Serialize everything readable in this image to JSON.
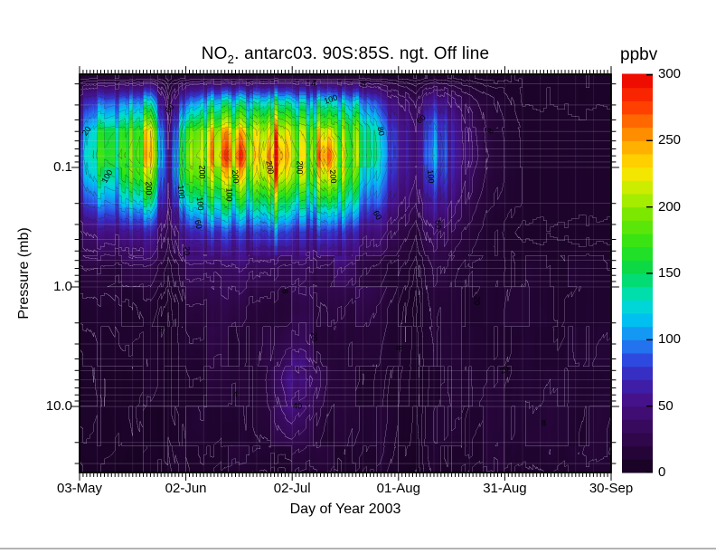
{
  "figure": {
    "title_pre": "NO",
    "title_sub": "2",
    "title_post": ". antarc03. 90S:85S. ngt. Off line",
    "colorbar_label": "ppbv"
  },
  "axes": {
    "x": {
      "label": "Day of Year 2003",
      "tick_labels": [
        "03-May",
        "02-Jun",
        "02-Jul",
        "01-Aug",
        "31-Aug",
        "30-Sep"
      ],
      "tick_days": [
        0,
        30,
        60,
        90,
        120,
        150
      ],
      "span_days": 150
    },
    "y": {
      "label": "Pressure (mb)",
      "tick_labels": [
        "0.1",
        "1.0",
        "10.0"
      ],
      "tick_values": [
        0.1,
        1,
        10
      ],
      "top_pressure": 0.0166,
      "bottom_pressure": 35.7
    }
  },
  "colorbar": {
    "min": 0,
    "max": 300,
    "tick_values": [
      0,
      50,
      100,
      150,
      200,
      250,
      300
    ],
    "tick_labels": [
      "0",
      "50",
      "100",
      "150",
      "200",
      "250",
      "300"
    ]
  },
  "chart_data": {
    "type": "heatmap",
    "title": "NO2. antarc03. 90S:85S. ngt. Off line",
    "xlabel": "Day of Year 2003",
    "ylabel": "Pressure (mb)",
    "units": "ppbv",
    "value_range": [
      0,
      300
    ],
    "x_days_since_may03": [
      0,
      5,
      10,
      15,
      20,
      25,
      30,
      35,
      40,
      45,
      50,
      55,
      60,
      65,
      70,
      75,
      80,
      85,
      90,
      95,
      100,
      105,
      110,
      115,
      120,
      125,
      130,
      135,
      140,
      145,
      150
    ],
    "pressures_mb": [
      0.018,
      0.028,
      0.05,
      0.08,
      0.12,
      0.2,
      0.35,
      0.7,
      1.5,
      3,
      6,
      12,
      25,
      40
    ],
    "values_ppbv": [
      [
        12,
        14,
        14,
        15,
        16,
        8,
        14,
        16,
        16,
        17,
        15,
        18,
        16,
        15,
        16,
        15,
        13,
        11,
        9,
        7,
        11,
        9,
        8,
        7,
        7,
        7,
        7,
        7,
        7,
        7,
        7
      ],
      [
        55,
        85,
        95,
        105,
        115,
        22,
        95,
        115,
        125,
        135,
        110,
        145,
        125,
        115,
        135,
        120,
        100,
        70,
        45,
        25,
        65,
        40,
        24,
        15,
        11,
        7,
        7,
        7,
        7,
        7,
        7
      ],
      [
        85,
        145,
        155,
        175,
        205,
        38,
        175,
        195,
        215,
        225,
        185,
        245,
        205,
        185,
        215,
        195,
        155,
        112,
        70,
        38,
        105,
        62,
        34,
        18,
        13,
        9,
        9,
        9,
        9,
        9,
        9
      ],
      [
        95,
        155,
        165,
        185,
        215,
        48,
        195,
        205,
        235,
        262,
        195,
        295,
        215,
        195,
        258,
        205,
        162,
        120,
        72,
        40,
        118,
        66,
        36,
        20,
        14,
        9,
        9,
        9,
        9,
        9,
        9
      ],
      [
        85,
        135,
        145,
        165,
        192,
        44,
        175,
        185,
        205,
        225,
        175,
        255,
        195,
        175,
        225,
        185,
        145,
        102,
        62,
        36,
        98,
        56,
        31,
        18,
        13,
        9,
        9,
        9,
        9,
        9,
        9
      ],
      [
        62,
        95,
        105,
        115,
        132,
        36,
        125,
        135,
        145,
        155,
        125,
        175,
        135,
        125,
        155,
        135,
        105,
        78,
        47,
        27,
        68,
        42,
        24,
        14,
        12,
        9,
        9,
        9,
        9,
        9,
        9
      ],
      [
        32,
        48,
        52,
        57,
        62,
        22,
        65,
        70,
        75,
        80,
        65,
        90,
        70,
        65,
        80,
        70,
        54,
        43,
        27,
        14,
        38,
        25,
        16,
        11,
        9,
        7,
        7,
        7,
        7,
        7,
        7
      ],
      [
        14,
        17,
        18,
        20,
        22,
        12,
        28,
        31,
        33,
        35,
        31,
        41,
        33,
        31,
        37,
        33,
        27,
        22,
        14,
        7,
        21,
        15,
        11,
        10,
        10,
        10,
        10,
        10,
        10,
        10,
        10
      ],
      [
        9,
        10,
        11,
        11,
        12,
        8,
        17,
        19,
        20,
        21,
        19,
        24,
        21,
        20,
        22,
        20,
        17,
        15,
        10,
        5,
        15,
        12,
        11,
        10,
        10,
        11,
        11,
        11,
        11,
        11,
        11
      ],
      [
        7,
        8,
        8,
        9,
        9,
        7,
        14,
        16,
        17,
        17,
        16,
        26,
        30,
        24,
        18,
        16,
        14,
        13,
        9,
        5,
        13,
        11,
        11,
        11,
        11,
        12,
        12,
        12,
        12,
        12,
        12
      ],
      [
        6,
        7,
        7,
        8,
        8,
        7,
        12,
        14,
        15,
        16,
        17,
        30,
        58,
        42,
        20,
        15,
        13,
        12,
        8,
        5,
        12,
        11,
        12,
        12,
        12,
        13,
        13,
        13,
        13,
        13,
        13
      ],
      [
        6,
        6,
        7,
        7,
        7,
        7,
        11,
        12,
        13,
        14,
        16,
        22,
        34,
        26,
        16,
        13,
        12,
        12,
        8,
        5,
        12,
        12,
        13,
        13,
        13,
        14,
        14,
        14,
        14,
        14,
        14
      ],
      [
        5,
        6,
        6,
        6,
        6,
        6,
        10,
        11,
        11,
        12,
        12,
        14,
        17,
        15,
        13,
        12,
        11,
        11,
        7,
        5,
        11,
        11,
        12,
        12,
        13,
        14,
        14,
        14,
        14,
        14,
        14
      ],
      [
        4,
        5,
        5,
        5,
        5,
        5,
        8,
        9,
        9,
        9,
        9,
        10,
        11,
        10,
        10,
        9,
        9,
        9,
        6,
        4,
        9,
        9,
        9,
        10,
        10,
        10,
        10,
        10,
        10,
        10,
        10
      ]
    ],
    "contour_levels": [
      4,
      6,
      8,
      10,
      14,
      20,
      30,
      40,
      60,
      80,
      100,
      120,
      140,
      160,
      180,
      200,
      220,
      240,
      260,
      280
    ],
    "colormap_stops": [
      [
        0,
        "#14021d"
      ],
      [
        20,
        "#2a0640"
      ],
      [
        40,
        "#3c0b67"
      ],
      [
        55,
        "#45128c"
      ],
      [
        70,
        "#3b22b4"
      ],
      [
        85,
        "#2e49e0"
      ],
      [
        100,
        "#1d86f5"
      ],
      [
        115,
        "#00c0f0"
      ],
      [
        128,
        "#00dcd0"
      ],
      [
        140,
        "#00df90"
      ],
      [
        152,
        "#06d74d"
      ],
      [
        170,
        "#2ae318"
      ],
      [
        195,
        "#7ce800"
      ],
      [
        212,
        "#c0ee00"
      ],
      [
        228,
        "#ffe400"
      ],
      [
        245,
        "#ffb000"
      ],
      [
        260,
        "#ff7c00"
      ],
      [
        275,
        "#ff4000"
      ],
      [
        290,
        "#f51800"
      ],
      [
        300,
        "#e80000"
      ]
    ],
    "contour_labels": [
      {
        "text": "20",
        "day": 2,
        "p": 0.05,
        "rot": -55
      },
      {
        "text": "100",
        "day": 8,
        "p": 0.12,
        "rot": -60
      },
      {
        "text": "200",
        "day": 19.5,
        "p": 0.15,
        "rot": 90
      },
      {
        "text": "60",
        "day": 25.5,
        "p": 0.032,
        "rot": -50
      },
      {
        "text": "100",
        "day": 28.5,
        "p": 0.16,
        "rot": 85
      },
      {
        "text": "20",
        "day": 30,
        "p": 0.5,
        "rot": 90
      },
      {
        "text": "60",
        "day": 33.5,
        "p": 0.3,
        "rot": 75
      },
      {
        "text": "100",
        "day": 34,
        "p": 0.2,
        "rot": 85
      },
      {
        "text": "200",
        "day": 34.5,
        "p": 0.11,
        "rot": 90
      },
      {
        "text": "100",
        "day": 42,
        "p": 0.17,
        "rot": 90
      },
      {
        "text": "200",
        "day": 44,
        "p": 0.12,
        "rot": 85
      },
      {
        "text": "200",
        "day": 53.5,
        "p": 0.1,
        "rot": 80
      },
      {
        "text": "4",
        "day": 66,
        "p": 0.02,
        "rot": 0
      },
      {
        "text": "200",
        "day": 62,
        "p": 0.1,
        "rot": 90
      },
      {
        "text": "100",
        "day": 71,
        "p": 0.027,
        "rot": -20
      },
      {
        "text": "200",
        "day": 71.5,
        "p": 0.12,
        "rot": 85
      },
      {
        "text": "8",
        "day": 80,
        "p": 0.02,
        "rot": 0
      },
      {
        "text": "80",
        "day": 85,
        "p": 0.05,
        "rot": 80
      },
      {
        "text": "60",
        "day": 84,
        "p": 0.25,
        "rot": 60
      },
      {
        "text": "60",
        "day": 96.5,
        "p": 0.04,
        "rot": -35
      },
      {
        "text": "100",
        "day": 99,
        "p": 0.12,
        "rot": 85
      },
      {
        "text": "60",
        "day": 101,
        "p": 0.3,
        "rot": 90
      },
      {
        "text": "8",
        "day": 116,
        "p": 0.05,
        "rot": -60
      },
      {
        "text": "8",
        "day": 58,
        "p": 1.1,
        "rot": 85
      },
      {
        "text": "20",
        "day": 66,
        "p": 2.6,
        "rot": 85
      },
      {
        "text": "40",
        "day": 61.5,
        "p": 10,
        "rot": 0
      },
      {
        "text": "4",
        "day": 23,
        "p": 2.3,
        "rot": 0
      },
      {
        "text": "4",
        "day": 44,
        "p": 8,
        "rot": 0
      },
      {
        "text": "8",
        "day": 90,
        "p": 3.2,
        "rot": 85
      },
      {
        "text": "20",
        "day": 112,
        "p": 1.3,
        "rot": 90
      },
      {
        "text": "20",
        "day": 120,
        "p": 5,
        "rot": -30
      },
      {
        "text": "8",
        "day": 131,
        "p": 14,
        "rot": 0
      }
    ]
  }
}
